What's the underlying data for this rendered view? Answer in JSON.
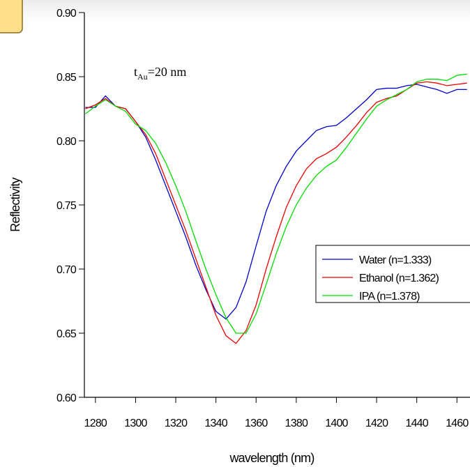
{
  "chart_data": {
    "type": "line",
    "y_label": "Reflectivity",
    "x_label": "wavelength (nm)",
    "annotation": {
      "symbol": "t",
      "subscript": "Au",
      "rest": "=20 nm"
    },
    "x": [
      1275,
      1280,
      1285,
      1290,
      1295,
      1300,
      1305,
      1310,
      1315,
      1320,
      1325,
      1330,
      1335,
      1340,
      1345,
      1350,
      1355,
      1360,
      1365,
      1370,
      1375,
      1380,
      1385,
      1390,
      1395,
      1400,
      1405,
      1410,
      1415,
      1420,
      1425,
      1430,
      1435,
      1440,
      1445,
      1450,
      1455,
      1460,
      1465
    ],
    "series": [
      {
        "name": "Water (n=1.333)",
        "color": "#0000cc",
        "values": [
          0.826,
          0.826,
          0.835,
          0.827,
          0.825,
          0.815,
          0.803,
          0.785,
          0.765,
          0.745,
          0.725,
          0.703,
          0.684,
          0.667,
          0.661,
          0.67,
          0.69,
          0.718,
          0.745,
          0.765,
          0.78,
          0.792,
          0.8,
          0.808,
          0.811,
          0.812,
          0.818,
          0.825,
          0.832,
          0.84,
          0.841,
          0.841,
          0.843,
          0.844,
          0.842,
          0.84,
          0.837,
          0.84,
          0.84
        ]
      },
      {
        "name": "Ethanol (n=1.362)",
        "color": "#ee0000",
        "values": [
          0.825,
          0.828,
          0.833,
          0.827,
          0.825,
          0.815,
          0.805,
          0.79,
          0.77,
          0.75,
          0.73,
          0.708,
          0.686,
          0.664,
          0.648,
          0.642,
          0.652,
          0.672,
          0.7,
          0.725,
          0.748,
          0.765,
          0.778,
          0.786,
          0.79,
          0.795,
          0.803,
          0.812,
          0.822,
          0.83,
          0.833,
          0.835,
          0.84,
          0.845,
          0.846,
          0.845,
          0.843,
          0.844,
          0.845
        ]
      },
      {
        "name": "IPA (n=1.378)",
        "color": "#00dd00",
        "values": [
          0.821,
          0.827,
          0.832,
          0.827,
          0.823,
          0.813,
          0.808,
          0.798,
          0.783,
          0.765,
          0.745,
          0.722,
          0.7,
          0.68,
          0.662,
          0.65,
          0.65,
          0.665,
          0.688,
          0.712,
          0.733,
          0.75,
          0.763,
          0.773,
          0.78,
          0.785,
          0.795,
          0.806,
          0.817,
          0.827,
          0.832,
          0.836,
          0.84,
          0.846,
          0.848,
          0.848,
          0.847,
          0.851,
          0.852
        ]
      }
    ],
    "xlim": [
      1274.5,
      1466.5
    ],
    "ylim": [
      0.6,
      0.9
    ],
    "xticks": [
      1280,
      1300,
      1320,
      1340,
      1360,
      1380,
      1400,
      1420,
      1440,
      1460
    ],
    "yticks": [
      {
        "value": 0.6,
        "label": "0.60"
      },
      {
        "value": 0.65,
        "label": "0.65"
      },
      {
        "value": 0.7,
        "label": "0.70"
      },
      {
        "value": 0.75,
        "label": "0.75"
      },
      {
        "value": 0.8,
        "label": "0.80"
      },
      {
        "value": 0.85,
        "label": "0.85"
      },
      {
        "value": 0.9,
        "label": "0.90"
      }
    ],
    "grid": false
  }
}
